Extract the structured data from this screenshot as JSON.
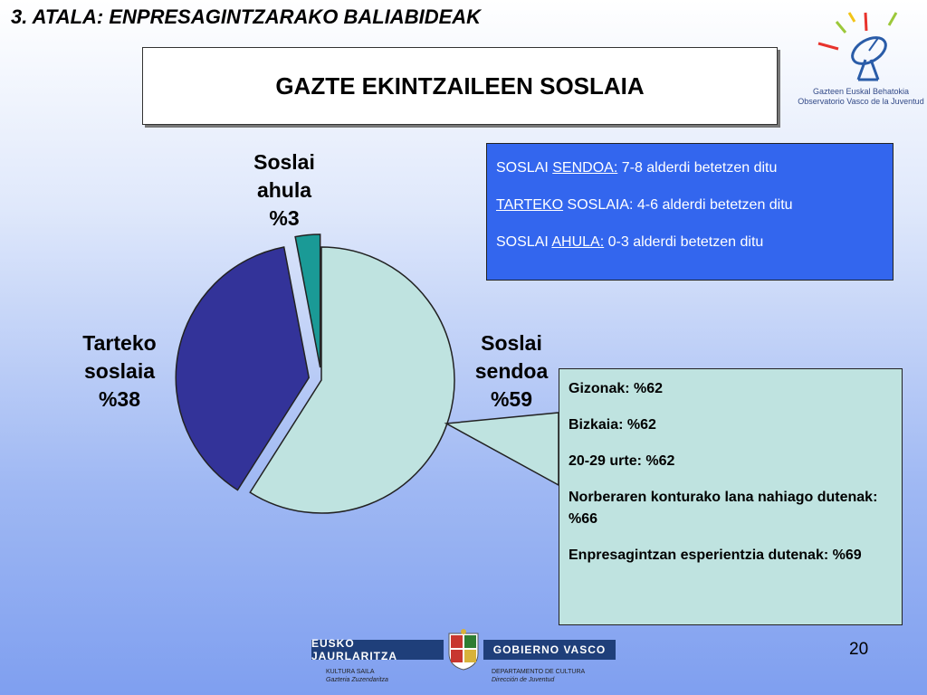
{
  "header": {
    "section_title": "3. ATALA: ENPRESAGINTZARAKO BALIABIDEAK"
  },
  "title": "GAZTE EKINTZAILEEN SOSLAIA",
  "logo": {
    "line1": "Gazteen Euskal Behatokia",
    "line2": "Observatorio Vasco de la Juventud",
    "icon": "satellite-dish-icon"
  },
  "chart_data": {
    "type": "pie",
    "slices": [
      {
        "label_lines": [
          "Soslai",
          "sendoa",
          "%59"
        ],
        "value": 59,
        "color": "#bfe3e0",
        "exploded": false
      },
      {
        "label_lines": [
          "Tarteko",
          "soslaia",
          "%38"
        ],
        "value": 38,
        "color": "#333399",
        "exploded": true
      },
      {
        "label_lines": [
          "Soslai",
          "ahula",
          "%3"
        ],
        "value": 3,
        "color": "#1a9a96",
        "exploded": true
      }
    ]
  },
  "legend": {
    "lines": [
      {
        "pre": "SOSLAI ",
        "u": "SENDOA:",
        "post": " 7-8 alderdi betetzen ditu"
      },
      {
        "pre": "",
        "u": "TARTEKO",
        "post": " SOSLAIA: 4-6 alderdi betetzen ditu"
      },
      {
        "pre": "SOSLAI ",
        "u": "AHULA:",
        "post": " 0-3 alderdi betetzen ditu"
      }
    ]
  },
  "stats": [
    "Gizonak: %62",
    "Bizkaia: %62",
    "20-29 urte: %62",
    "Norberaren konturako lana nahiago dutenak: %66",
    "Enpresagintzan esperientzia dutenak: %69"
  ],
  "footer": {
    "left_bar": "EUSKO JAURLARITZA",
    "right_bar": "GOBIERNO VASCO",
    "left_small1": "KULTURA SAILA",
    "left_small2": "Gazteria Zuzendaritza",
    "right_small1": "DEPARTAMENTO DE CULTURA",
    "right_small2": "Dirección de Juventud"
  },
  "page_number": "20"
}
